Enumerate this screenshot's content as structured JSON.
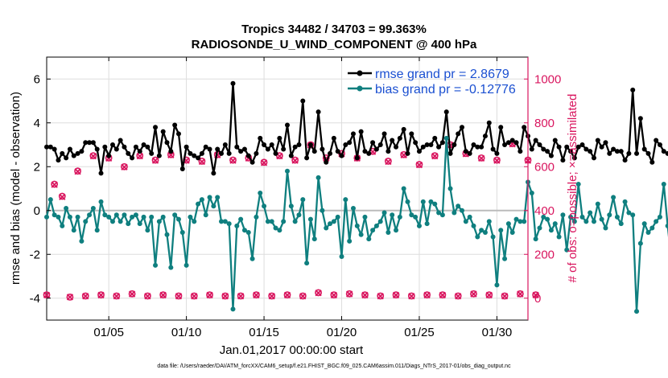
{
  "chart_data": {
    "type": "line",
    "title": "Tropics 34482 / 34703 = 99.363%",
    "subtitle": "RADIOSONDE_U_WIND_COMPONENT @ 400 hPa",
    "xlabel": "Jan.01,2017 00:00:00 start",
    "ylabel": "rmse and bias (model - observation)",
    "ylabel_right": "# of obs: o=possible; ×=assimilated",
    "footer": "data file: /Users/raeder/DAI/ATM_forcXX/CAM6_setup/f.e21.FHIST_BGC.f09_025.CAM6assim.011/Diags_NTrS_2017-01/obs_diag_output.nc",
    "xlim": [
      1,
      32
    ],
    "ylim": [
      -5,
      7
    ],
    "ylim_right": [
      -100,
      1100
    ],
    "x_ticks": [
      5,
      10,
      15,
      20,
      25,
      30
    ],
    "x_tick_labels": [
      "01/05",
      "01/10",
      "01/15",
      "01/20",
      "01/25",
      "01/30"
    ],
    "y_ticks": [
      -4,
      -2,
      0,
      2,
      4,
      6
    ],
    "y_ticks_right": [
      0,
      200,
      400,
      600,
      800,
      1000
    ],
    "legend": [
      "rmse grand pr = 2.8679",
      "bias grand pr = -0.12776"
    ],
    "colors": {
      "rmse": "#000000",
      "bias": "#0f7f7f",
      "obs": "#d9165f",
      "legend_text": "#1a4fd1",
      "zero_line": "#bbbbbb",
      "grid": "#dddddd"
    },
    "series": [
      {
        "name": "rmse",
        "axis": "left",
        "x_start": 1.0,
        "x_step": 0.25,
        "values": [
          2.9,
          2.9,
          2.8,
          2.3,
          2.6,
          2.4,
          2.8,
          2.5,
          2.6,
          2.7,
          3.1,
          3.1,
          3.1,
          2.8,
          1.7,
          2.9,
          2.5,
          3.0,
          2.8,
          3.2,
          2.9,
          2.6,
          2.4,
          2.9,
          2.7,
          3.0,
          2.9,
          2.6,
          3.8,
          2.5,
          3.6,
          3.1,
          2.7,
          3.9,
          3.5,
          1.9,
          2.9,
          2.6,
          2.5,
          2.4,
          2.6,
          2.9,
          2.8,
          1.7,
          2.8,
          2.6,
          3.0,
          2.6,
          5.8,
          2.9,
          2.7,
          2.8,
          2.5,
          2.2,
          2.6,
          3.3,
          3.0,
          2.8,
          3.0,
          2.6,
          3.3,
          2.8,
          3.9,
          2.5,
          2.9,
          3.0,
          5.0,
          2.4,
          3.0,
          2.7,
          4.5,
          2.8,
          2.2,
          2.6,
          3.3,
          2.7,
          2.5,
          3.0,
          3.1,
          3.5,
          2.4,
          3.6,
          2.7,
          2.6,
          3.1,
          2.8,
          3.0,
          3.5,
          2.7,
          3.2,
          2.9,
          3.3,
          3.7,
          2.6,
          3.5,
          3.1,
          2.7,
          2.9,
          3.0,
          3.0,
          3.3,
          2.9,
          3.1,
          4.5,
          2.6,
          3.0,
          3.5,
          3.8,
          2.7,
          2.6,
          3.0,
          2.9,
          2.9,
          3.4,
          4.0,
          2.8,
          2.6,
          3.8,
          3.0,
          3.1,
          3.2,
          3.1,
          2.7,
          3.8,
          3.4,
          2.8,
          3.2,
          3.0,
          2.8,
          2.7,
          2.5,
          3.2,
          2.9,
          2.3,
          2.9,
          2.7,
          2.4,
          2.9,
          3.0,
          2.8,
          2.7,
          2.4,
          3.2,
          2.9,
          3.1,
          2.6,
          2.8,
          2.7,
          2.7,
          2.3,
          2.6,
          5.5,
          2.6,
          4.2,
          2.8,
          2.6,
          2.2,
          3.2,
          3.0,
          2.7,
          2.6,
          2.9,
          2.6,
          3.8,
          3.2,
          3.0,
          2.7
        ]
      },
      {
        "name": "bias",
        "axis": "left",
        "x_start": 1.0,
        "x_step": 0.25,
        "values": [
          -0.3,
          0.5,
          -0.2,
          -0.3,
          -0.7,
          0.1,
          -0.3,
          -0.9,
          -0.3,
          -1.4,
          -0.5,
          -0.2,
          0.1,
          -0.9,
          0.4,
          -0.2,
          -0.3,
          -0.5,
          -0.2,
          -0.5,
          -0.2,
          -0.6,
          -0.3,
          -0.2,
          -0.6,
          -0.3,
          -0.9,
          -0.3,
          -2.5,
          -0.5,
          -0.3,
          -1.1,
          -2.6,
          -0.2,
          -0.4,
          -1.0,
          -2.5,
          -0.3,
          -0.5,
          0.3,
          0.5,
          -0.2,
          0.6,
          0.2,
          0.6,
          -0.5,
          -0.5,
          -0.6,
          -4.5,
          -0.7,
          -0.4,
          -0.9,
          -1.0,
          -2.2,
          -0.3,
          0.8,
          0.2,
          -0.5,
          -0.5,
          -0.8,
          -0.9,
          -0.5,
          1.8,
          0.2,
          -0.5,
          -0.2,
          0.5,
          -2.4,
          -0.4,
          -1.3,
          1.5,
          0.0,
          -0.8,
          -0.6,
          -0.5,
          -0.3,
          -2.1,
          0.5,
          -1.4,
          0.1,
          -0.7,
          -1.1,
          -0.3,
          -1.3,
          -0.9,
          -0.7,
          -0.5,
          -0.1,
          -1.0,
          -0.2,
          -0.9,
          -0.3,
          1.0,
          0.4,
          -0.2,
          -0.3,
          -0.7,
          0.4,
          -0.6,
          0.4,
          0.3,
          -0.1,
          -0.2,
          3.3,
          1.0,
          -0.1,
          0.2,
          0.0,
          -0.5,
          -0.3,
          -0.7,
          -1.2,
          -0.9,
          -1.0,
          -0.5,
          -1.2,
          -3.4,
          -0.9,
          -2.2,
          -0.6,
          -1.0,
          -0.4,
          -0.5,
          -0.5,
          1.3,
          0.8,
          -1.3,
          -0.8,
          -0.3,
          -0.4,
          -0.9,
          -0.6,
          -1.2,
          -0.2,
          -1.8,
          -0.3,
          -0.5,
          1.2,
          -0.3,
          -0.5,
          -0.1,
          -0.5,
          0.3,
          -0.4,
          -0.8,
          -0.2,
          0.6,
          -0.3,
          -0.6,
          0.4,
          -0.1,
          -0.2,
          -4.6,
          -1.5,
          -0.6,
          -1.0,
          -0.8,
          -0.5,
          -0.3,
          1.2,
          -0.7,
          -2.3,
          0.8,
          -0.3,
          -1.4,
          0.5,
          1.8
        ]
      },
      {
        "name": "possible",
        "axis": "right",
        "x_start": 1.0,
        "x_step": 0.5,
        "values": [
          15,
          520,
          465,
          5,
          580,
          10,
          650,
          15,
          640,
          10,
          600,
          20,
          650,
          10,
          630,
          15,
          655,
          10,
          630,
          10,
          625,
          15,
          655,
          10,
          630,
          10,
          640,
          15,
          620,
          10,
          650,
          15,
          630,
          10,
          700,
          25,
          640,
          15,
          660,
          20,
          640,
          15,
          670,
          10,
          625,
          15,
          655,
          10,
          610,
          15,
          650,
          15,
          700,
          10,
          660,
          20,
          640,
          15,
          630,
          10,
          705,
          20,
          630,
          15
        ]
      },
      {
        "name": "assimilated",
        "axis": "right",
        "x_start": 1.0,
        "x_step": 0.5,
        "values": [
          14,
          518,
          462,
          5,
          578,
          9,
          648,
          14,
          638,
          9,
          598,
          19,
          648,
          9,
          628,
          14,
          653,
          9,
          628,
          9,
          623,
          14,
          653,
          9,
          628,
          9,
          638,
          14,
          618,
          9,
          648,
          14,
          628,
          9,
          698,
          24,
          638,
          14,
          658,
          19,
          638,
          14,
          668,
          9,
          623,
          14,
          653,
          9,
          608,
          14,
          648,
          14,
          698,
          9,
          658,
          19,
          638,
          14,
          628,
          9,
          703,
          19,
          628,
          14
        ]
      }
    ]
  }
}
